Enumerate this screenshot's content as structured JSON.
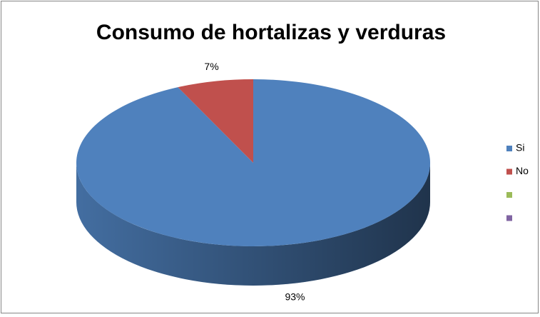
{
  "chart_data": {
    "type": "pie",
    "title": "Consumo de hortalizas y verduras",
    "categories": [
      "Si",
      "No",
      null,
      null
    ],
    "values": [
      93,
      7,
      null,
      null
    ],
    "value_labels": [
      "93%",
      "7%",
      null,
      null
    ],
    "colors": [
      "#4f81bd",
      "#c0504d",
      "#9bbb59",
      "#8064a2"
    ],
    "legend": "right"
  }
}
